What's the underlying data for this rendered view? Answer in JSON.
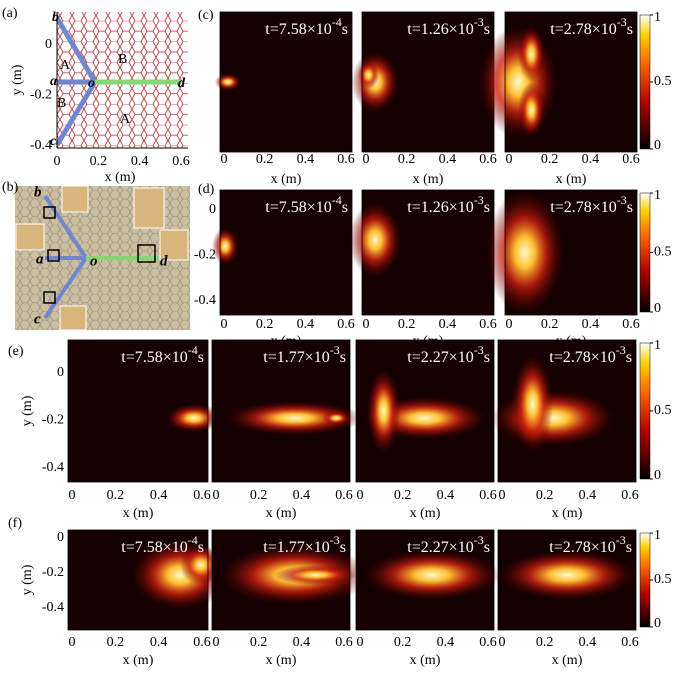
{
  "panel_a": {
    "label": "(a)",
    "ylabel": "y (m)",
    "xlabel": "x (m)",
    "xticks": [
      0,
      0.2,
      0.4,
      0.6
    ],
    "yticks": [
      0,
      -0.2,
      -0.4
    ],
    "points": {
      "b": "b",
      "a": "a",
      "o": "o",
      "d": "d",
      "c": "c"
    },
    "regions": [
      "A",
      "B",
      "B",
      "A"
    ]
  },
  "panel_b": {
    "label": "(b)",
    "points": {
      "b": "b",
      "a": "a",
      "o": "o",
      "d": "d",
      "c": "c"
    }
  },
  "rows": [
    {
      "label": "(c)",
      "xlabel": "x (m)",
      "xticks": [
        0,
        0.2,
        0.4,
        0.6
      ],
      "colorbar_ticks": [
        1,
        0.5,
        0
      ],
      "times": [
        {
          "base": "t=7.58×10",
          "exp": "-4",
          "unit": "s"
        },
        {
          "base": "t=1.26×10",
          "exp": "-3",
          "unit": "s"
        },
        {
          "base": "t=2.78×10",
          "exp": "-3",
          "unit": "s"
        }
      ]
    },
    {
      "label": "(d)",
      "xlabel": "x (m)",
      "xticks": [
        0,
        0.2,
        0.4,
        0.6
      ],
      "yticks": [
        0,
        -0.2,
        -0.4
      ],
      "colorbar_ticks": [
        1,
        0.5,
        0
      ],
      "times": [
        {
          "base": "t=7.58×10",
          "exp": "-4",
          "unit": "s"
        },
        {
          "base": "t=1.26×10",
          "exp": "-3",
          "unit": "s"
        },
        {
          "base": "t=2.78×10",
          "exp": "-3",
          "unit": "s"
        }
      ]
    },
    {
      "label": "(e)",
      "ylabel": "y (m)",
      "xlabel": "x (m)",
      "xticks": [
        0,
        0.2,
        0.4,
        0.6
      ],
      "yticks": [
        0,
        -0.2,
        -0.4
      ],
      "colorbar_ticks": [
        1,
        0.5,
        0
      ],
      "times": [
        {
          "base": "t=7.58×10",
          "exp": "-4",
          "unit": "s"
        },
        {
          "base": "t=1.77×10",
          "exp": "-3",
          "unit": "s"
        },
        {
          "base": "t=2.27×10",
          "exp": "-3",
          "unit": "s"
        },
        {
          "base": "t=2.78×10",
          "exp": "-3",
          "unit": "s"
        }
      ]
    },
    {
      "label": "(f)",
      "ylabel": "y (m)",
      "xlabel": "x (m)",
      "xticks": [
        0,
        0.2,
        0.4,
        0.6
      ],
      "yticks": [
        0,
        -0.2,
        -0.4
      ],
      "colorbar_ticks": [
        1,
        0.5,
        0
      ],
      "times": [
        {
          "base": "t=7.58×10",
          "exp": "-4",
          "unit": "s"
        },
        {
          "base": "t=1.77×10",
          "exp": "-3",
          "unit": "s"
        },
        {
          "base": "t=2.27×10",
          "exp": "-3",
          "unit": "s"
        },
        {
          "base": "t=2.78×10",
          "exp": "-3",
          "unit": "s"
        }
      ]
    }
  ]
}
